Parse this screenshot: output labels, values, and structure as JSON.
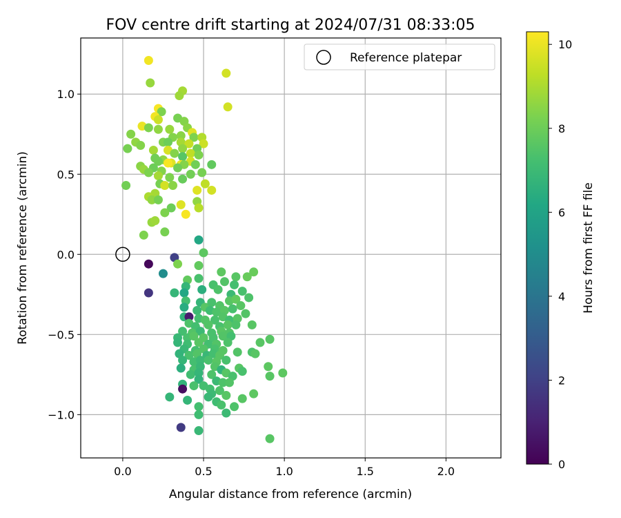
{
  "chart_data": {
    "type": "scatter",
    "title": "FOV centre drift starting at 2024/07/31 08:33:05",
    "xlabel": "Angular distance from reference (arcmin)",
    "ylabel": "Rotation from reference (arcmin)",
    "xlim": [
      -0.26,
      2.34
    ],
    "ylim": [
      -1.27,
      1.35
    ],
    "xticks": [
      0.0,
      0.5,
      1.0,
      1.5,
      2.0
    ],
    "xtick_labels": [
      "0.0",
      "0.5",
      "1.0",
      "1.5",
      "2.0"
    ],
    "yticks": [
      -1.0,
      -0.5,
      0.0,
      0.5,
      1.0
    ],
    "ytick_labels": [
      "−1.0",
      "−0.5",
      "0.0",
      "0.5",
      "1.0"
    ],
    "grid": true,
    "legend": {
      "location": "upper right",
      "entries": [
        "Reference platepar"
      ]
    },
    "reference_marker": {
      "x": 0.0,
      "y": 0.0
    },
    "colorbar": {
      "label": "Hours from first FF file",
      "colormap": "viridis",
      "range": [
        0,
        10.3
      ],
      "ticks": [
        0,
        2,
        4,
        6,
        8,
        10
      ],
      "tick_labels": [
        "0",
        "2",
        "4",
        "6",
        "8",
        "10"
      ]
    },
    "series": [
      {
        "color_by": "hours",
        "points": [
          [
            0.16,
            1.21,
            10.1
          ],
          [
            0.17,
            1.07,
            8.7
          ],
          [
            0.37,
            1.02,
            8.9
          ],
          [
            0.64,
            1.13,
            9.6
          ],
          [
            0.35,
            0.99,
            8.8
          ],
          [
            0.65,
            0.92,
            9.6
          ],
          [
            0.22,
            0.91,
            10.2
          ],
          [
            0.24,
            0.89,
            8.3
          ],
          [
            0.2,
            0.86,
            10.1
          ],
          [
            0.22,
            0.84,
            9.5
          ],
          [
            0.34,
            0.85,
            8.2
          ],
          [
            0.38,
            0.83,
            8.4
          ],
          [
            0.12,
            0.8,
            10.0
          ],
          [
            0.16,
            0.79,
            8.3
          ],
          [
            0.22,
            0.78,
            8.6
          ],
          [
            0.29,
            0.78,
            8.7
          ],
          [
            0.4,
            0.79,
            8.5
          ],
          [
            0.43,
            0.76,
            9.8
          ],
          [
            0.36,
            0.74,
            8.5
          ],
          [
            0.31,
            0.73,
            8.4
          ],
          [
            0.05,
            0.75,
            8.4
          ],
          [
            0.08,
            0.7,
            8.6
          ],
          [
            0.44,
            0.73,
            8.3
          ],
          [
            0.49,
            0.73,
            9.1
          ],
          [
            0.36,
            0.7,
            8.9
          ],
          [
            0.41,
            0.69,
            9.4
          ],
          [
            0.5,
            0.69,
            9.5
          ],
          [
            0.25,
            0.7,
            8.3
          ],
          [
            0.28,
            0.7,
            8.0
          ],
          [
            0.46,
            0.66,
            8.1
          ],
          [
            0.37,
            0.66,
            8.6
          ],
          [
            0.19,
            0.65,
            8.9
          ],
          [
            0.11,
            0.68,
            8.4
          ],
          [
            0.03,
            0.66,
            8.2
          ],
          [
            0.28,
            0.65,
            9.7
          ],
          [
            0.32,
            0.63,
            8.4
          ],
          [
            0.42,
            0.63,
            9.3
          ],
          [
            0.37,
            0.61,
            7.6
          ],
          [
            0.47,
            0.62,
            8.3
          ],
          [
            0.2,
            0.6,
            8.1
          ],
          [
            0.25,
            0.59,
            8.6
          ],
          [
            0.22,
            0.58,
            8.1
          ],
          [
            0.3,
            0.57,
            9.8
          ],
          [
            0.28,
            0.57,
            10.2
          ],
          [
            0.36,
            0.56,
            10.0
          ],
          [
            0.42,
            0.58,
            9.6
          ],
          [
            0.38,
            0.56,
            8.4
          ],
          [
            0.45,
            0.56,
            8.1
          ],
          [
            0.55,
            0.56,
            7.8
          ],
          [
            0.11,
            0.55,
            8.5
          ],
          [
            0.13,
            0.53,
            8.7
          ],
          [
            0.19,
            0.54,
            8.0
          ],
          [
            0.24,
            0.52,
            8.4
          ],
          [
            0.34,
            0.54,
            8.1
          ],
          [
            0.49,
            0.51,
            8.2
          ],
          [
            0.16,
            0.51,
            8.3
          ],
          [
            0.22,
            0.49,
            8.9
          ],
          [
            0.29,
            0.48,
            8.3
          ],
          [
            0.37,
            0.47,
            7.9
          ],
          [
            0.42,
            0.5,
            8.1
          ],
          [
            0.02,
            0.43,
            8.1
          ],
          [
            0.23,
            0.44,
            8.2
          ],
          [
            0.26,
            0.43,
            9.6
          ],
          [
            0.31,
            0.43,
            8.5
          ],
          [
            0.51,
            0.44,
            9.3
          ],
          [
            0.46,
            0.4,
            9.8
          ],
          [
            0.55,
            0.4,
            9.6
          ],
          [
            0.2,
            0.38,
            8.9
          ],
          [
            0.16,
            0.36,
            9.0
          ],
          [
            0.18,
            0.34,
            8.6
          ],
          [
            0.22,
            0.34,
            8.2
          ],
          [
            0.46,
            0.33,
            8.6
          ],
          [
            0.36,
            0.31,
            9.8
          ],
          [
            0.47,
            0.29,
            9.2
          ],
          [
            0.3,
            0.29,
            8.0
          ],
          [
            0.26,
            0.26,
            8.3
          ],
          [
            0.39,
            0.25,
            10.2
          ],
          [
            0.18,
            0.2,
            8.7
          ],
          [
            0.2,
            0.21,
            8.8
          ],
          [
            0.13,
            0.12,
            8.3
          ],
          [
            0.26,
            0.14,
            8.2
          ],
          [
            0.47,
            0.09,
            6.2
          ],
          [
            0.5,
            0.01,
            7.7
          ],
          [
            0.16,
            -0.06,
            0.2
          ],
          [
            0.32,
            -0.02,
            2.0
          ],
          [
            0.34,
            -0.06,
            8.3
          ],
          [
            0.47,
            -0.07,
            7.8
          ],
          [
            0.25,
            -0.12,
            5.0
          ],
          [
            0.61,
            -0.11,
            7.7
          ],
          [
            0.7,
            -0.14,
            7.6
          ],
          [
            0.77,
            -0.14,
            7.9
          ],
          [
            0.81,
            -0.11,
            7.9
          ],
          [
            0.4,
            -0.16,
            7.8
          ],
          [
            0.47,
            -0.15,
            7.3
          ],
          [
            0.39,
            -0.2,
            6.8
          ],
          [
            0.49,
            -0.22,
            6.5
          ],
          [
            0.56,
            -0.19,
            7.3
          ],
          [
            0.63,
            -0.17,
            7.5
          ],
          [
            0.16,
            -0.24,
            1.6
          ],
          [
            0.32,
            -0.24,
            6.8
          ],
          [
            0.38,
            -0.24,
            6.2
          ],
          [
            0.59,
            -0.22,
            7.4
          ],
          [
            0.69,
            -0.19,
            7.2
          ],
          [
            0.67,
            -0.25,
            7.0
          ],
          [
            0.74,
            -0.23,
            7.3
          ],
          [
            0.78,
            -0.27,
            7.4
          ],
          [
            0.39,
            -0.29,
            7.2
          ],
          [
            0.48,
            -0.3,
            6.8
          ],
          [
            0.51,
            -0.33,
            7.6
          ],
          [
            0.55,
            -0.3,
            7.3
          ],
          [
            0.6,
            -0.32,
            7.5
          ],
          [
            0.66,
            -0.29,
            7.6
          ],
          [
            0.7,
            -0.28,
            7.8
          ],
          [
            0.38,
            -0.33,
            6.4
          ],
          [
            0.46,
            -0.35,
            7.0
          ],
          [
            0.54,
            -0.35,
            7.1
          ],
          [
            0.58,
            -0.36,
            7.4
          ],
          [
            0.63,
            -0.35,
            7.6
          ],
          [
            0.68,
            -0.34,
            7.3
          ],
          [
            0.73,
            -0.32,
            7.6
          ],
          [
            0.76,
            -0.37,
            7.5
          ],
          [
            0.38,
            -0.39,
            6.7
          ],
          [
            0.41,
            -0.39,
            0.8
          ],
          [
            0.47,
            -0.4,
            7.2
          ],
          [
            0.51,
            -0.41,
            7.5
          ],
          [
            0.57,
            -0.41,
            7.3
          ],
          [
            0.62,
            -0.39,
            7.5
          ],
          [
            0.66,
            -0.41,
            7.2
          ],
          [
            0.71,
            -0.4,
            7.6
          ],
          [
            0.41,
            -0.43,
            7.4
          ],
          [
            0.45,
            -0.45,
            7.2
          ],
          [
            0.53,
            -0.44,
            7.5
          ],
          [
            0.6,
            -0.45,
            7.3
          ],
          [
            0.65,
            -0.44,
            7.6
          ],
          [
            0.7,
            -0.44,
            7.4
          ],
          [
            0.8,
            -0.44,
            7.6
          ],
          [
            0.37,
            -0.48,
            7.2
          ],
          [
            0.43,
            -0.49,
            7.5
          ],
          [
            0.48,
            -0.48,
            7.0
          ],
          [
            0.55,
            -0.49,
            7.3
          ],
          [
            0.61,
            -0.48,
            7.6
          ],
          [
            0.66,
            -0.49,
            7.5
          ],
          [
            0.34,
            -0.52,
            6.9
          ],
          [
            0.4,
            -0.52,
            7.3
          ],
          [
            0.44,
            -0.51,
            7.6
          ],
          [
            0.5,
            -0.52,
            7.6
          ],
          [
            0.56,
            -0.52,
            7.3
          ],
          [
            0.62,
            -0.51,
            7.5
          ],
          [
            0.67,
            -0.51,
            7.2
          ],
          [
            0.34,
            -0.55,
            6.8
          ],
          [
            0.4,
            -0.56,
            7.1
          ],
          [
            0.47,
            -0.55,
            7.6
          ],
          [
            0.53,
            -0.56,
            7.2
          ],
          [
            0.58,
            -0.56,
            7.5
          ],
          [
            0.65,
            -0.55,
            7.4
          ],
          [
            0.85,
            -0.55,
            7.6
          ],
          [
            0.91,
            -0.53,
            7.6
          ],
          [
            0.38,
            -0.59,
            6.9
          ],
          [
            0.45,
            -0.6,
            7.2
          ],
          [
            0.5,
            -0.59,
            7.5
          ],
          [
            0.57,
            -0.59,
            7.3
          ],
          [
            0.62,
            -0.6,
            7.6
          ],
          [
            0.71,
            -0.61,
            7.5
          ],
          [
            0.8,
            -0.61,
            7.4
          ],
          [
            0.82,
            -0.62,
            7.6
          ],
          [
            0.35,
            -0.62,
            6.7
          ],
          [
            0.41,
            -0.63,
            7.3
          ],
          [
            0.46,
            -0.62,
            7.5
          ],
          [
            0.52,
            -0.63,
            6.9
          ],
          [
            0.56,
            -0.62,
            7.2
          ],
          [
            0.6,
            -0.63,
            7.6
          ],
          [
            0.37,
            -0.66,
            6.8
          ],
          [
            0.44,
            -0.67,
            7.2
          ],
          [
            0.48,
            -0.66,
            7.0
          ],
          [
            0.53,
            -0.66,
            7.3
          ],
          [
            0.58,
            -0.67,
            7.6
          ],
          [
            0.64,
            -0.66,
            7.3
          ],
          [
            0.36,
            -0.71,
            6.5
          ],
          [
            0.44,
            -0.72,
            7.3
          ],
          [
            0.48,
            -0.7,
            6.9
          ],
          [
            0.57,
            -0.7,
            7.5
          ],
          [
            0.61,
            -0.72,
            6.7
          ],
          [
            0.72,
            -0.71,
            7.6
          ],
          [
            0.74,
            -0.73,
            7.3
          ],
          [
            0.9,
            -0.7,
            7.7
          ],
          [
            0.42,
            -0.75,
            7.1
          ],
          [
            0.47,
            -0.74,
            6.8
          ],
          [
            0.55,
            -0.75,
            7.4
          ],
          [
            0.64,
            -0.74,
            7.6
          ],
          [
            0.68,
            -0.76,
            7.3
          ],
          [
            0.91,
            -0.76,
            7.6
          ],
          [
            0.99,
            -0.74,
            7.7
          ],
          [
            0.47,
            -0.78,
            6.7
          ],
          [
            0.58,
            -0.79,
            7.0
          ],
          [
            0.62,
            -0.8,
            7.4
          ],
          [
            0.66,
            -0.8,
            7.5
          ],
          [
            0.37,
            -0.81,
            6.7
          ],
          [
            0.44,
            -0.82,
            7.3
          ],
          [
            0.5,
            -0.82,
            7.2
          ],
          [
            0.37,
            -0.84,
            0.4
          ],
          [
            0.54,
            -0.84,
            7.2
          ],
          [
            0.6,
            -0.85,
            7.4
          ],
          [
            0.55,
            -0.87,
            7.0
          ],
          [
            0.64,
            -0.88,
            7.6
          ],
          [
            0.81,
            -0.87,
            7.7
          ],
          [
            0.29,
            -0.89,
            6.8
          ],
          [
            0.53,
            -0.89,
            6.9
          ],
          [
            0.58,
            -0.92,
            7.1
          ],
          [
            0.4,
            -0.91,
            6.8
          ],
          [
            0.47,
            -0.95,
            7.2
          ],
          [
            0.61,
            -0.94,
            7.3
          ],
          [
            0.69,
            -0.95,
            7.4
          ],
          [
            0.74,
            -0.9,
            7.6
          ],
          [
            0.47,
            -1.0,
            7.1
          ],
          [
            0.64,
            -0.99,
            7.0
          ],
          [
            0.36,
            -1.08,
            1.8
          ],
          [
            0.47,
            -1.1,
            6.9
          ],
          [
            0.91,
            -1.15,
            7.6
          ]
        ]
      }
    ]
  }
}
